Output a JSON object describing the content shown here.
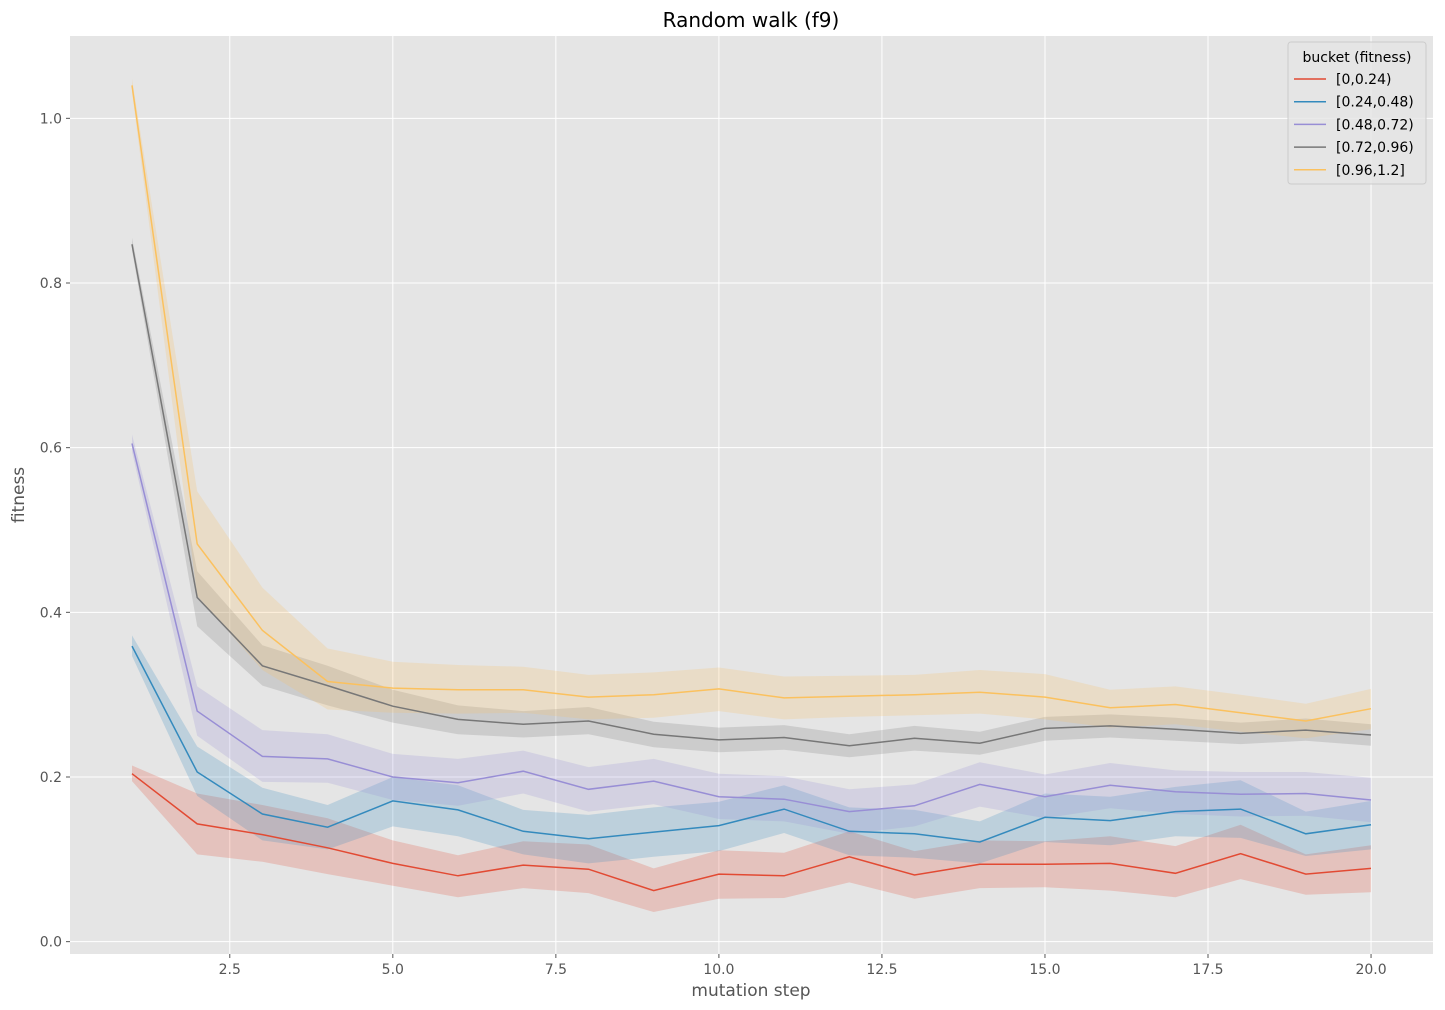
{
  "chart_data": {
    "type": "line",
    "title": "Random walk (f9)",
    "xlabel": "mutation step",
    "ylabel": "fitness",
    "xlim": [
      0.05,
      20.95
    ],
    "ylim": [
      -0.015,
      1.1
    ],
    "xticks": [
      2.5,
      5.0,
      7.5,
      10.0,
      12.5,
      15.0,
      17.5,
      20.0
    ],
    "xtick_labels": [
      "2.5",
      "5.0",
      "7.5",
      "10.0",
      "12.5",
      "15.0",
      "17.5",
      "20.0"
    ],
    "yticks": [
      0.0,
      0.2,
      0.4,
      0.6,
      0.8,
      1.0
    ],
    "ytick_labels": [
      "0.0",
      "0.2",
      "0.4",
      "0.6",
      "0.8",
      "1.0"
    ],
    "grid": true,
    "legend": {
      "title": "bucket (fitness)",
      "placement": "top-right"
    },
    "x": [
      1,
      2,
      3,
      4,
      5,
      6,
      7,
      8,
      9,
      10,
      11,
      12,
      13,
      14,
      15,
      16,
      17,
      18,
      19,
      20
    ],
    "series": [
      {
        "name": "[0,0.24)",
        "color": "#E24A33",
        "values": [
          0.204,
          0.143,
          0.13,
          0.114,
          0.095,
          0.08,
          0.093,
          0.088,
          0.062,
          0.082,
          0.08,
          0.103,
          0.081,
          0.094,
          0.094,
          0.095,
          0.083,
          0.107,
          0.082,
          0.089
        ],
        "lower": [
          0.195,
          0.106,
          0.097,
          0.082,
          0.068,
          0.054,
          0.065,
          0.059,
          0.036,
          0.052,
          0.053,
          0.072,
          0.052,
          0.065,
          0.066,
          0.062,
          0.054,
          0.076,
          0.057,
          0.06
        ],
        "upper": [
          0.214,
          0.18,
          0.166,
          0.15,
          0.123,
          0.105,
          0.122,
          0.118,
          0.089,
          0.111,
          0.108,
          0.134,
          0.11,
          0.123,
          0.122,
          0.128,
          0.116,
          0.142,
          0.106,
          0.117
        ]
      },
      {
        "name": "[0.24,0.48)",
        "color": "#348ABD",
        "values": [
          0.359,
          0.206,
          0.155,
          0.139,
          0.171,
          0.16,
          0.134,
          0.125,
          0.133,
          0.141,
          0.161,
          0.134,
          0.131,
          0.121,
          0.151,
          0.147,
          0.158,
          0.161,
          0.131,
          0.142
        ],
        "lower": [
          0.347,
          0.177,
          0.123,
          0.112,
          0.14,
          0.128,
          0.106,
          0.095,
          0.103,
          0.11,
          0.132,
          0.105,
          0.102,
          0.095,
          0.121,
          0.117,
          0.128,
          0.126,
          0.104,
          0.112
        ],
        "upper": [
          0.372,
          0.237,
          0.187,
          0.166,
          0.2,
          0.19,
          0.16,
          0.154,
          0.163,
          0.17,
          0.19,
          0.163,
          0.16,
          0.146,
          0.18,
          0.176,
          0.188,
          0.196,
          0.158,
          0.171
        ]
      },
      {
        "name": "[0.48,0.72)",
        "color": "#988ED5",
        "values": [
          0.605,
          0.28,
          0.225,
          0.222,
          0.2,
          0.193,
          0.207,
          0.185,
          0.195,
          0.176,
          0.173,
          0.158,
          0.165,
          0.191,
          0.176,
          0.19,
          0.182,
          0.179,
          0.18,
          0.172
        ],
        "lower": [
          0.595,
          0.25,
          0.194,
          0.193,
          0.172,
          0.165,
          0.18,
          0.158,
          0.167,
          0.149,
          0.146,
          0.131,
          0.14,
          0.164,
          0.15,
          0.162,
          0.155,
          0.152,
          0.153,
          0.145
        ],
        "upper": [
          0.616,
          0.31,
          0.257,
          0.252,
          0.228,
          0.222,
          0.232,
          0.212,
          0.222,
          0.204,
          0.201,
          0.185,
          0.191,
          0.218,
          0.203,
          0.217,
          0.208,
          0.206,
          0.206,
          0.199
        ]
      },
      {
        "name": "[0.72,0.96)",
        "color": "#777777",
        "values": [
          0.847,
          0.418,
          0.335,
          0.311,
          0.286,
          0.27,
          0.264,
          0.268,
          0.252,
          0.245,
          0.248,
          0.238,
          0.247,
          0.241,
          0.259,
          0.262,
          0.258,
          0.253,
          0.257,
          0.251
        ],
        "lower": [
          0.84,
          0.383,
          0.311,
          0.287,
          0.266,
          0.252,
          0.248,
          0.252,
          0.236,
          0.23,
          0.233,
          0.224,
          0.232,
          0.227,
          0.244,
          0.248,
          0.244,
          0.24,
          0.244,
          0.238
        ],
        "upper": [
          0.855,
          0.45,
          0.36,
          0.335,
          0.306,
          0.287,
          0.28,
          0.285,
          0.267,
          0.26,
          0.263,
          0.252,
          0.262,
          0.255,
          0.273,
          0.276,
          0.272,
          0.266,
          0.271,
          0.264
        ]
      },
      {
        "name": "[0.96,1.2]",
        "color": "#FBC15E",
        "values": [
          1.04,
          0.483,
          0.378,
          0.316,
          0.308,
          0.306,
          0.306,
          0.297,
          0.3,
          0.307,
          0.296,
          0.298,
          0.3,
          0.303,
          0.297,
          0.284,
          0.288,
          0.278,
          0.268,
          0.283
        ],
        "lower": [
          1.032,
          0.42,
          0.33,
          0.282,
          0.278,
          0.277,
          0.278,
          0.27,
          0.272,
          0.28,
          0.27,
          0.273,
          0.275,
          0.277,
          0.27,
          0.26,
          0.264,
          0.255,
          0.247,
          0.258
        ],
        "upper": [
          1.048,
          0.547,
          0.43,
          0.356,
          0.34,
          0.336,
          0.334,
          0.324,
          0.327,
          0.333,
          0.322,
          0.323,
          0.324,
          0.33,
          0.325,
          0.306,
          0.31,
          0.3,
          0.289,
          0.307
        ]
      }
    ]
  }
}
